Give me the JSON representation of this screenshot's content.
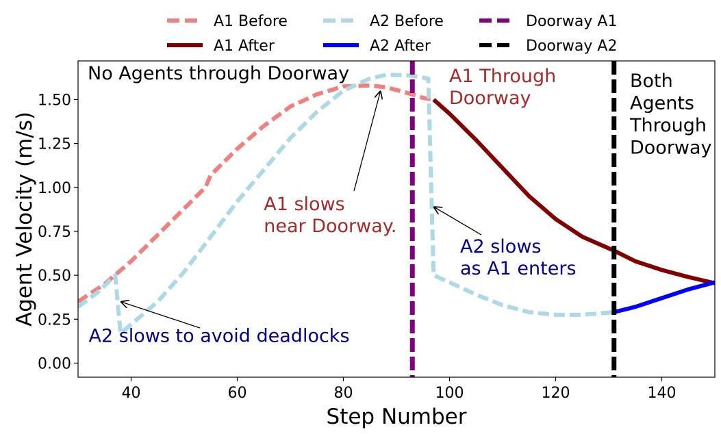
{
  "chart_data": {
    "type": "line",
    "xlabel": "Step Number",
    "ylabel": "Agent Velocity (m/s)",
    "xlim": [
      30,
      150
    ],
    "ylim": [
      -0.08,
      1.72
    ],
    "xticks": [
      40,
      60,
      80,
      100,
      120,
      140
    ],
    "yticks": [
      0.0,
      0.25,
      0.5,
      0.75,
      1.0,
      1.25,
      1.5
    ],
    "xtick_labels": [
      "40",
      "60",
      "80",
      "100",
      "120",
      "140"
    ],
    "ytick_labels": [
      "0.00",
      "0.25",
      "0.50",
      "0.75",
      "1.00",
      "1.25",
      "1.50"
    ],
    "grid": false,
    "legend_position": "top, outside plot, 3 columns",
    "series": [
      {
        "name": "A1 Before",
        "color": "#f08080",
        "style": "dashed",
        "x": [
          30,
          35,
          40,
          45,
          50,
          54,
          55,
          60,
          65,
          70,
          75,
          80,
          85,
          88,
          90,
          93,
          95,
          97
        ],
        "y": [
          0.35,
          0.45,
          0.58,
          0.73,
          0.88,
          1.0,
          1.07,
          1.22,
          1.35,
          1.46,
          1.53,
          1.575,
          1.58,
          1.57,
          1.555,
          1.53,
          1.51,
          1.5
        ]
      },
      {
        "name": "A1 After",
        "color": "#800000",
        "style": "solid",
        "x": [
          97,
          100,
          105,
          110,
          115,
          120,
          125,
          131,
          135,
          140,
          145,
          150
        ],
        "y": [
          1.5,
          1.42,
          1.27,
          1.11,
          0.95,
          0.82,
          0.72,
          0.64,
          0.58,
          0.53,
          0.49,
          0.455
        ]
      },
      {
        "name": "A2 Before",
        "color": "#add8e6",
        "style": "dashed",
        "x": [
          30,
          34,
          37,
          38,
          40,
          45,
          50,
          55,
          60,
          65,
          70,
          75,
          80,
          85,
          88,
          90,
          93,
          96,
          97,
          100,
          105,
          110,
          115,
          120,
          125,
          131
        ],
        "y": [
          0.32,
          0.41,
          0.5,
          0.17,
          0.22,
          0.35,
          0.52,
          0.72,
          0.92,
          1.1,
          1.28,
          1.43,
          1.55,
          1.62,
          1.64,
          1.64,
          1.635,
          1.62,
          0.5,
          0.46,
          0.39,
          0.33,
          0.29,
          0.275,
          0.275,
          0.29
        ]
      },
      {
        "name": "A2 After",
        "color": "#0000ff",
        "style": "solid",
        "x": [
          131,
          135,
          140,
          145,
          150
        ],
        "y": [
          0.29,
          0.32,
          0.37,
          0.42,
          0.46
        ]
      },
      {
        "name": "Doorway A1",
        "color": "#800080",
        "style": "dashed-vertical",
        "x_value": 93
      },
      {
        "name": "Doorway A2",
        "color": "#000000",
        "style": "dashed-vertical",
        "x_value": 131
      }
    ],
    "region_labels": [
      {
        "text": "No Agents through Doorway",
        "color": "#000000"
      },
      {
        "lines": [
          "A1 Through",
          "Doorway"
        ],
        "color": "#a52a2a"
      },
      {
        "lines": [
          "Both",
          "Agents",
          "Through",
          "Doorway"
        ],
        "color": "#000000"
      }
    ],
    "annotations": [
      {
        "lines": [
          "A1 slows",
          "near Doorway."
        ],
        "color": "#a52a2a",
        "text_at": [
          65,
          0.87
        ],
        "arrow_to": [
          87,
          1.55
        ],
        "arrow_from": [
          82,
          0.98
        ]
      },
      {
        "lines": [
          "A2 slows",
          "as A1 enters"
        ],
        "color": "#00008b",
        "text_at": [
          102,
          0.63
        ],
        "arrow_to": [
          97,
          0.89
        ],
        "arrow_from": [
          106,
          0.73
        ]
      },
      {
        "lines": [
          "A2 slows to avoid deadlocks"
        ],
        "color": "#00008b",
        "text_at": [
          32,
          0.12
        ],
        "arrow_to": [
          38,
          0.35
        ],
        "arrow_from": [
          53,
          0.2
        ]
      }
    ]
  }
}
